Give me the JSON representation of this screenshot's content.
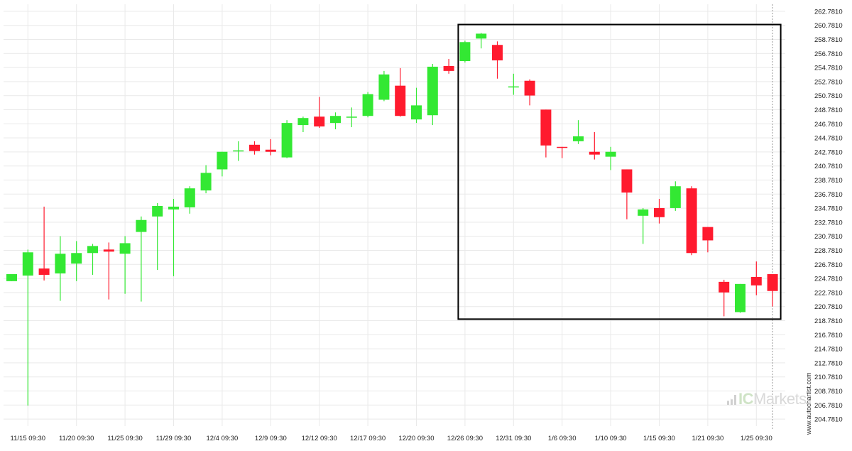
{
  "watermark_text": "www.autochartist.com",
  "brand": {
    "prefix": "IC",
    "name": "Markets"
  },
  "colors": {
    "up": "#33e833",
    "down": "#ff1a2e",
    "grid": "#e9e9e9",
    "box": "#000000",
    "cursor": "#999999"
  },
  "chart_data": {
    "type": "candlestick",
    "title": "",
    "xlabel": "",
    "ylabel": "",
    "ylim": [
      203.781,
      263.781
    ],
    "y_ticks": [
      "262.7810",
      "260.7810",
      "258.7810",
      "256.7810",
      "254.7810",
      "252.7810",
      "250.7810",
      "248.7810",
      "246.7810",
      "244.7810",
      "242.7810",
      "240.7810",
      "238.7810",
      "236.7810",
      "234.7810",
      "232.7810",
      "230.7810",
      "228.7810",
      "226.7810",
      "224.7810",
      "222.7810",
      "220.7810",
      "218.7810",
      "216.7810",
      "214.7810",
      "212.7810",
      "210.7810",
      "208.7810",
      "206.7810",
      "204.7810"
    ],
    "x_ticks": [
      {
        "label": "11/15 09:30",
        "index": 1
      },
      {
        "label": "11/20 09:30",
        "index": 4
      },
      {
        "label": "11/25 09:30",
        "index": 7
      },
      {
        "label": "11/29 09:30",
        "index": 10
      },
      {
        "label": "12/4 09:30",
        "index": 13
      },
      {
        "label": "12/9 09:30",
        "index": 16
      },
      {
        "label": "12/12 09:30",
        "index": 19
      },
      {
        "label": "12/17 09:30",
        "index": 22
      },
      {
        "label": "12/20 09:30",
        "index": 25
      },
      {
        "label": "12/26 09:30",
        "index": 28
      },
      {
        "label": "12/31 09:30",
        "index": 31
      },
      {
        "label": "1/6 09:30",
        "index": 34
      },
      {
        "label": "1/10 09:30",
        "index": 37
      },
      {
        "label": "1/15 09:30",
        "index": 40
      },
      {
        "label": "1/21 09:30",
        "index": 43
      },
      {
        "label": "1/25 09:30",
        "index": 46
      }
    ],
    "candles": [
      {
        "o": 224.4,
        "h": 225.4,
        "l": 224.4,
        "c": 225.4
      },
      {
        "o": 225.2,
        "h": 228.9,
        "l": 206.7,
        "c": 228.5
      },
      {
        "o": 226.2,
        "h": 235.0,
        "l": 224.5,
        "c": 225.3
      },
      {
        "o": 225.5,
        "h": 230.8,
        "l": 221.6,
        "c": 228.3
      },
      {
        "o": 226.9,
        "h": 230.1,
        "l": 224.4,
        "c": 228.4
      },
      {
        "o": 228.4,
        "h": 229.7,
        "l": 225.3,
        "c": 229.4
      },
      {
        "o": 228.9,
        "h": 229.9,
        "l": 221.8,
        "c": 228.6
      },
      {
        "o": 228.3,
        "h": 230.8,
        "l": 222.6,
        "c": 229.8
      },
      {
        "o": 231.4,
        "h": 233.6,
        "l": 221.5,
        "c": 233.1
      },
      {
        "o": 233.6,
        "h": 235.5,
        "l": 226.0,
        "c": 235.1
      },
      {
        "o": 234.6,
        "h": 236.1,
        "l": 225.1,
        "c": 235.0
      },
      {
        "o": 234.9,
        "h": 237.9,
        "l": 234.0,
        "c": 237.6
      },
      {
        "o": 237.3,
        "h": 240.9,
        "l": 236.9,
        "c": 239.8
      },
      {
        "o": 240.3,
        "h": 242.8,
        "l": 239.3,
        "c": 242.8
      },
      {
        "o": 243.0,
        "h": 244.3,
        "l": 241.5,
        "c": 243.0
      },
      {
        "o": 243.8,
        "h": 244.3,
        "l": 242.4,
        "c": 242.9
      },
      {
        "o": 243.1,
        "h": 244.6,
        "l": 242.3,
        "c": 242.8
      },
      {
        "o": 242.0,
        "h": 247.3,
        "l": 241.9,
        "c": 246.9
      },
      {
        "o": 246.6,
        "h": 247.8,
        "l": 245.6,
        "c": 247.6
      },
      {
        "o": 247.8,
        "h": 250.6,
        "l": 246.2,
        "c": 246.4
      },
      {
        "o": 246.9,
        "h": 248.4,
        "l": 246.0,
        "c": 247.9
      },
      {
        "o": 247.8,
        "h": 249.1,
        "l": 246.3,
        "c": 247.8
      },
      {
        "o": 247.9,
        "h": 251.3,
        "l": 247.7,
        "c": 251.0
      },
      {
        "o": 250.2,
        "h": 254.3,
        "l": 250.0,
        "c": 253.8
      },
      {
        "o": 252.2,
        "h": 254.7,
        "l": 247.8,
        "c": 247.9
      },
      {
        "o": 247.4,
        "h": 251.9,
        "l": 246.9,
        "c": 249.4
      },
      {
        "o": 248.0,
        "h": 255.3,
        "l": 246.6,
        "c": 254.9
      },
      {
        "o": 255.0,
        "h": 256.0,
        "l": 253.9,
        "c": 254.3
      },
      {
        "o": 255.7,
        "h": 258.6,
        "l": 255.5,
        "c": 258.4
      },
      {
        "o": 258.9,
        "h": 259.7,
        "l": 257.5,
        "c": 259.6
      },
      {
        "o": 258.0,
        "h": 258.5,
        "l": 253.2,
        "c": 255.8
      },
      {
        "o": 252.0,
        "h": 253.9,
        "l": 250.9,
        "c": 252.1
      },
      {
        "o": 252.9,
        "h": 253.1,
        "l": 249.4,
        "c": 250.8
      },
      {
        "o": 248.8,
        "h": 248.8,
        "l": 242.0,
        "c": 243.7
      },
      {
        "o": 243.5,
        "h": 243.5,
        "l": 241.9,
        "c": 243.4
      },
      {
        "o": 244.3,
        "h": 247.3,
        "l": 243.9,
        "c": 245.0
      },
      {
        "o": 242.8,
        "h": 245.6,
        "l": 241.7,
        "c": 242.4
      },
      {
        "o": 242.1,
        "h": 243.5,
        "l": 240.2,
        "c": 242.8
      },
      {
        "o": 240.3,
        "h": 240.3,
        "l": 233.2,
        "c": 237.0
      },
      {
        "o": 233.7,
        "h": 234.8,
        "l": 229.7,
        "c": 234.6
      },
      {
        "o": 234.8,
        "h": 236.1,
        "l": 232.6,
        "c": 233.5
      },
      {
        "o": 234.8,
        "h": 238.6,
        "l": 234.4,
        "c": 237.9
      },
      {
        "o": 237.6,
        "h": 237.9,
        "l": 228.1,
        "c": 228.4
      },
      {
        "o": 232.1,
        "h": 232.1,
        "l": 228.5,
        "c": 230.2
      },
      {
        "o": 224.3,
        "h": 224.6,
        "l": 219.4,
        "c": 222.8
      },
      {
        "o": 220.0,
        "h": 224.0,
        "l": 219.9,
        "c": 224.0
      },
      {
        "o": 225.0,
        "h": 227.2,
        "l": 222.4,
        "c": 223.8
      },
      {
        "o": 225.4,
        "h": 225.4,
        "l": 220.8,
        "c": 223.0
      }
    ],
    "annotation_box": {
      "start_index": 28,
      "end_index": 47,
      "top": 260.9,
      "bottom": 219.0
    },
    "cursor_index": 47
  }
}
